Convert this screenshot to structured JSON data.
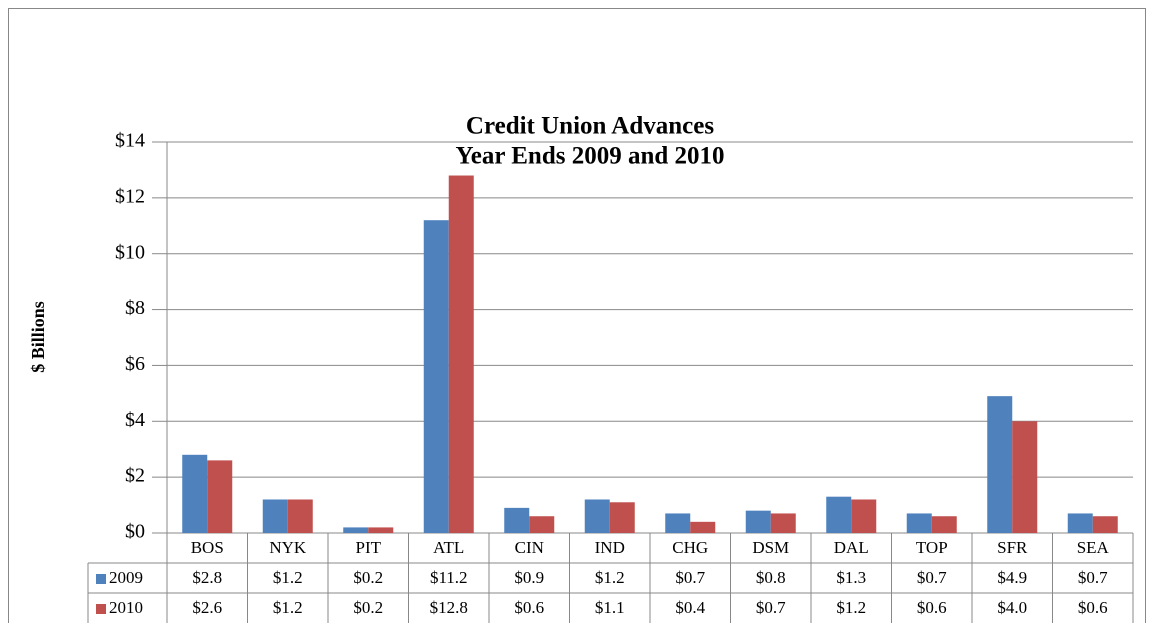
{
  "chart_data": {
    "type": "bar",
    "title": [
      "Credit Union Advances",
      "Year Ends 2009 and 2010"
    ],
    "y_label": "$ Billions",
    "categories": [
      "BOS",
      "NYK",
      "PIT",
      "ATL",
      "CIN",
      "IND",
      "CHG",
      "DSM",
      "DAL",
      "TOP",
      "SFR",
      "SEA"
    ],
    "series": [
      {
        "name": "2009",
        "color": "#4f81bd",
        "values": [
          2.8,
          1.2,
          0.2,
          11.2,
          0.9,
          1.2,
          0.7,
          0.8,
          1.3,
          0.7,
          4.9,
          0.7
        ],
        "value_labels": [
          "$2.8",
          "$1.2",
          "$0.2",
          "$11.2",
          "$0.9",
          "$1.2",
          "$0.7",
          "$0.8",
          "$1.3",
          "$0.7",
          "$4.9",
          "$0.7"
        ]
      },
      {
        "name": "2010",
        "color": "#c0504d",
        "values": [
          2.6,
          1.2,
          0.2,
          12.8,
          0.6,
          1.1,
          0.4,
          0.7,
          1.2,
          0.6,
          4.0,
          0.6
        ],
        "value_labels": [
          "$2.6",
          "$1.2",
          "$0.2",
          "$12.8",
          "$0.6",
          "$1.1",
          "$0.4",
          "$0.7",
          "$1.2",
          "$0.6",
          "$4.0",
          "$0.6"
        ]
      }
    ],
    "ylim": [
      0,
      14
    ],
    "yticks": [
      {
        "value": 0,
        "label": "$0"
      },
      {
        "value": 2,
        "label": "$2"
      },
      {
        "value": 4,
        "label": "$4"
      },
      {
        "value": 6,
        "label": "$6"
      },
      {
        "value": 8,
        "label": "$8"
      },
      {
        "value": 10,
        "label": "$10"
      },
      {
        "value": 12,
        "label": "$12"
      },
      {
        "value": 14,
        "label": "$14"
      }
    ],
    "grid": true
  }
}
